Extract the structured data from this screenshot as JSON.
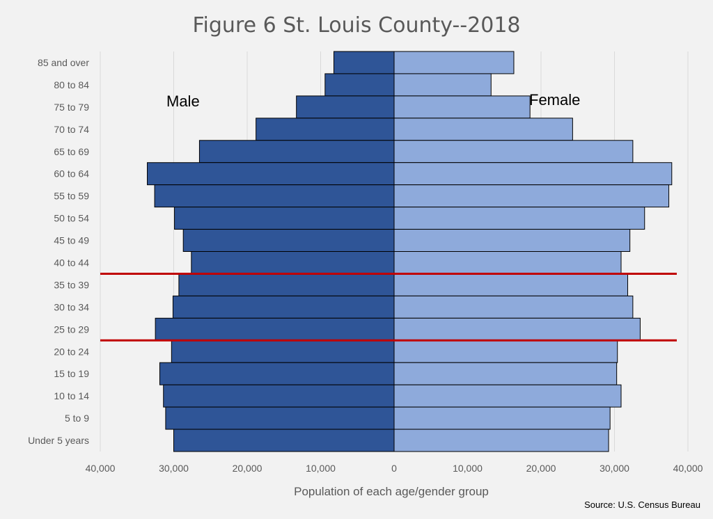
{
  "chart_data": {
    "type": "bar",
    "title": "Figure 6 St. Louis County--2018",
    "xlabel": "Population of each age/gender group",
    "source": "Source: U.S. Census Bureau",
    "xlim": [
      -40000,
      40000
    ],
    "x_ticks": [
      -40000,
      -30000,
      -20000,
      -10000,
      0,
      10000,
      20000,
      30000,
      40000
    ],
    "x_tick_labels": [
      "40,000",
      "30,000",
      "20,000",
      "10,000",
      "0",
      "10,000",
      "20,000",
      "30,000",
      "40,000"
    ],
    "grid": true,
    "categories": [
      "85 and over",
      "80 to 84",
      "75 to 79",
      "70 to 74",
      "65 to 69",
      "60 to 64",
      "55 to 59",
      "50 to 54",
      "45 to 49",
      "40 to 44",
      "35 to 39",
      "30 to 34",
      "25 to 29",
      "20 to 24",
      "15 to 19",
      "10 to 14",
      "5 to 9",
      "Under 5 years"
    ],
    "series": [
      {
        "name": "Male",
        "color": "#2f5597",
        "values": [
          8200,
          9400,
          13300,
          18800,
          26500,
          33600,
          32600,
          29900,
          28700,
          27600,
          29300,
          30100,
          32500,
          30300,
          31900,
          31400,
          31100,
          30000
        ]
      },
      {
        "name": "Female",
        "color": "#8eaadb",
        "values": [
          16300,
          13200,
          18500,
          24300,
          32500,
          37800,
          37400,
          34100,
          32100,
          30900,
          31800,
          32500,
          33500,
          30400,
          30300,
          30900,
          29400,
          29200
        ]
      }
    ],
    "reference_lines": {
      "color": "#c00000",
      "between": [
        [
          "40 to 44",
          "35 to 39"
        ],
        [
          "25 to 29",
          "20 to 24"
        ]
      ]
    }
  }
}
